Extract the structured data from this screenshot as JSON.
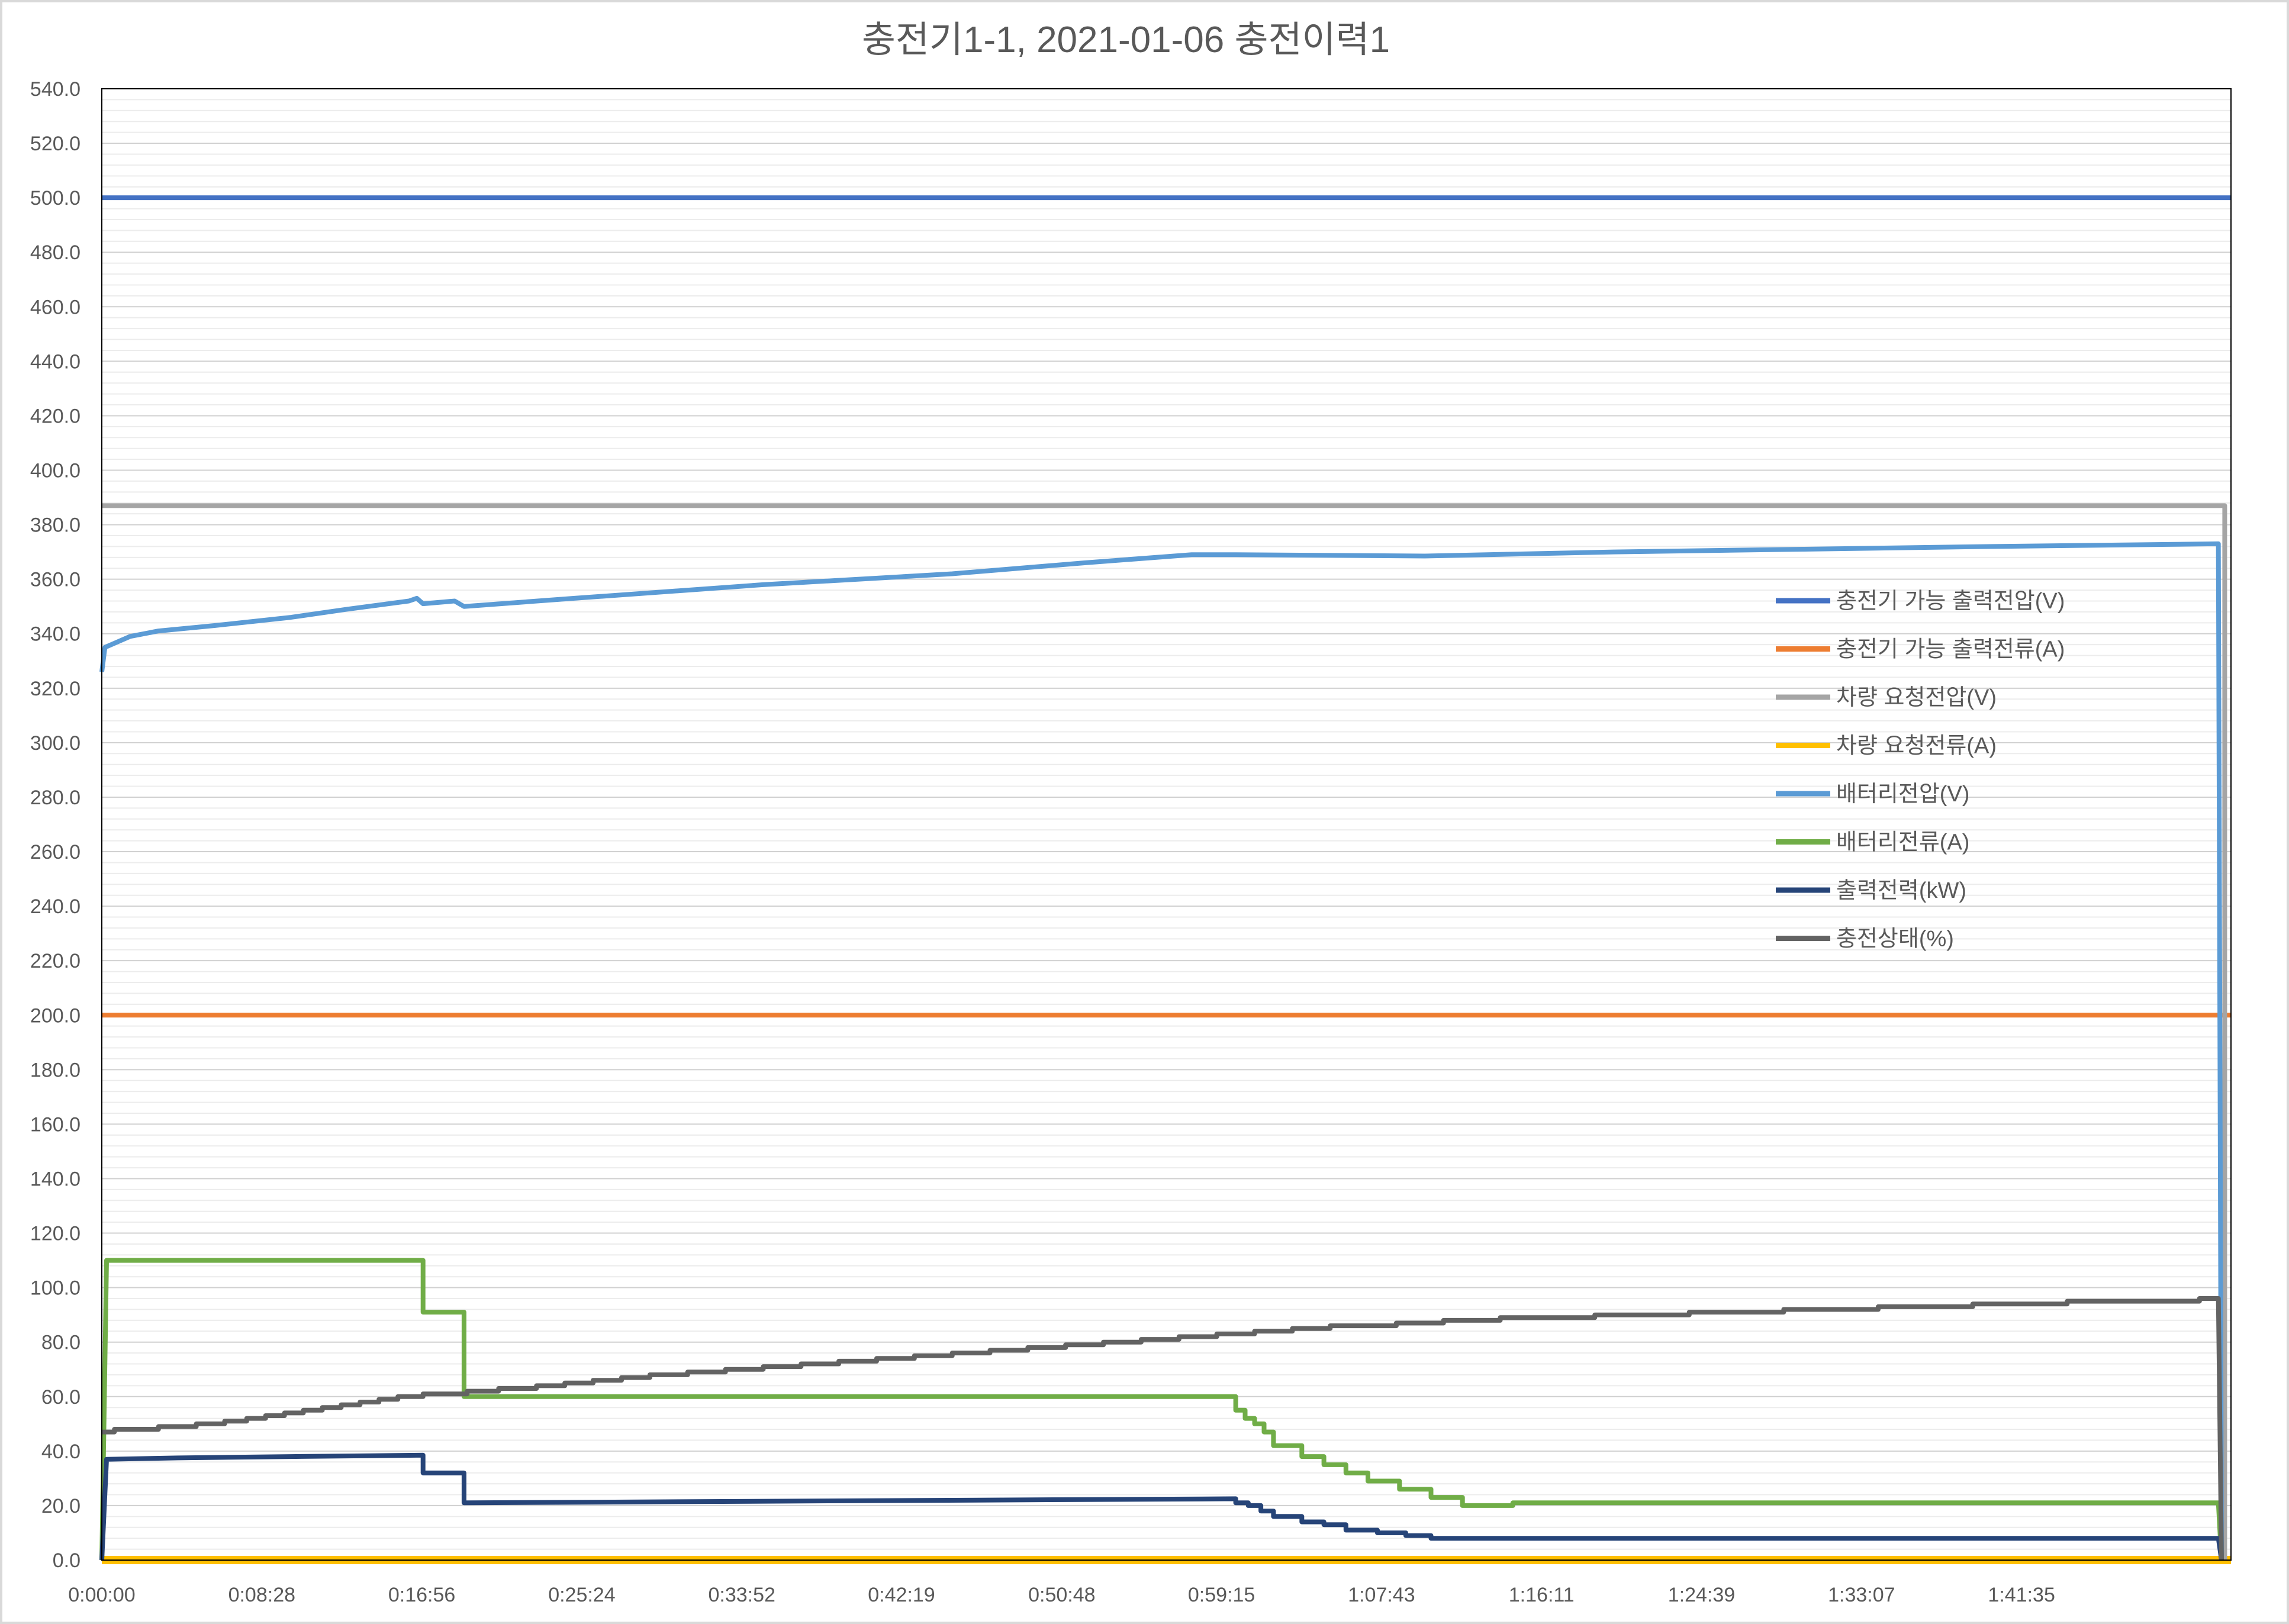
{
  "chart_data": {
    "type": "line",
    "title": "충전기1-1,  2021-01-06  충전이력1",
    "xlabel": "",
    "ylabel": "",
    "ylim": [
      0,
      540
    ],
    "xlim_seconds": [
      0,
      6760
    ],
    "y_ticks": [
      "0.0",
      "20.0",
      "40.0",
      "60.0",
      "80.0",
      "100.0",
      "120.0",
      "140.0",
      "160.0",
      "180.0",
      "200.0",
      "220.0",
      "240.0",
      "260.0",
      "280.0",
      "300.0",
      "320.0",
      "340.0",
      "360.0",
      "380.0",
      "400.0",
      "420.0",
      "440.0",
      "460.0",
      "480.0",
      "500.0",
      "520.0",
      "540.0"
    ],
    "x_ticks": [
      "0:00:00",
      "0:08:28",
      "0:16:56",
      "0:25:24",
      "0:33:52",
      "0:42:19",
      "0:50:48",
      "0:59:15",
      "1:07:43",
      "1:16:11",
      "1:24:39",
      "1:33:07",
      "1:41:35"
    ],
    "grid": true,
    "legend_position": "right",
    "series": [
      {
        "name": "충전기 가능 출력전압(V)",
        "color": "#4472C4",
        "points": [
          [
            "0:00:00",
            500
          ],
          [
            "1:52:40",
            500
          ]
        ]
      },
      {
        "name": "충전기 가능 출력전류(A)",
        "color": "#ED7D31",
        "points": [
          [
            "0:00:00",
            200
          ],
          [
            "1:52:40",
            200
          ]
        ]
      },
      {
        "name": "차량 요청전압(V)",
        "color": "#A5A5A5",
        "points": [
          [
            "0:00:00",
            387
          ],
          [
            "1:52:20",
            387
          ],
          [
            "1:52:20",
            0
          ]
        ]
      },
      {
        "name": "차량 요청전류(A)",
        "color": "#FFC000",
        "points": [
          [
            "0:00:00",
            0
          ],
          [
            "1:52:40",
            0
          ]
        ]
      },
      {
        "name": "배터리전압(V)",
        "color": "#5B9BD5",
        "points": [
          [
            "0:00:00",
            326
          ],
          [
            "0:00:10",
            335
          ],
          [
            "0:00:30",
            336
          ],
          [
            "0:01:30",
            339
          ],
          [
            "0:03:00",
            341
          ],
          [
            "0:06:00",
            343
          ],
          [
            "0:10:00",
            346
          ],
          [
            "0:13:00",
            349
          ],
          [
            "0:16:15",
            352
          ],
          [
            "0:16:40",
            353
          ],
          [
            "0:17:00",
            351
          ],
          [
            "0:18:40",
            352
          ],
          [
            "0:19:10",
            350
          ],
          [
            "0:25:00",
            353
          ],
          [
            "0:35:00",
            358
          ],
          [
            "0:45:00",
            362
          ],
          [
            "0:52:00",
            366
          ],
          [
            "0:57:40",
            369
          ],
          [
            "1:00:00",
            369
          ],
          [
            "1:10:00",
            368.5
          ],
          [
            "1:20:00",
            370
          ],
          [
            "1:30:00",
            371
          ],
          [
            "1:40:00",
            372
          ],
          [
            "1:52:00",
            373
          ],
          [
            "1:52:10",
            0
          ]
        ]
      },
      {
        "name": "배터리전류(A)",
        "color": "#70AD47",
        "points": [
          [
            "0:00:00",
            0
          ],
          [
            "0:00:15",
            110
          ],
          [
            "0:17:00",
            110
          ],
          [
            "0:17:00",
            91
          ],
          [
            "0:19:10",
            91
          ],
          [
            "0:19:10",
            60
          ],
          [
            "1:00:00",
            60
          ],
          [
            "1:00:00",
            55
          ],
          [
            "1:00:30",
            55
          ],
          [
            "1:00:30",
            52
          ],
          [
            "1:01:00",
            52
          ],
          [
            "1:01:00",
            50
          ],
          [
            "1:01:30",
            50
          ],
          [
            "1:01:30",
            47
          ],
          [
            "1:02:00",
            47
          ],
          [
            "1:02:00",
            42
          ],
          [
            "1:03:30",
            42
          ],
          [
            "1:03:30",
            38
          ],
          [
            "1:04:40",
            38
          ],
          [
            "1:04:40",
            35
          ],
          [
            "1:05:50",
            35
          ],
          [
            "1:05:50",
            32
          ],
          [
            "1:07:00",
            32
          ],
          [
            "1:07:00",
            29
          ],
          [
            "1:08:40",
            29
          ],
          [
            "1:08:40",
            26
          ],
          [
            "1:10:20",
            26
          ],
          [
            "1:10:20",
            23
          ],
          [
            "1:12:00",
            23
          ],
          [
            "1:12:00",
            20
          ],
          [
            "1:14:40",
            20
          ],
          [
            "1:14:40",
            21
          ],
          [
            "1:52:00",
            21
          ],
          [
            "1:52:10",
            0
          ]
        ]
      },
      {
        "name": "출력전력(kW)",
        "color": "#264478",
        "points": [
          [
            "0:00:00",
            0
          ],
          [
            "0:00:15",
            37
          ],
          [
            "0:04:00",
            37.5
          ],
          [
            "0:10:00",
            38
          ],
          [
            "0:17:00",
            38.5
          ],
          [
            "0:17:00",
            32
          ],
          [
            "0:19:10",
            32
          ],
          [
            "0:19:10",
            21
          ],
          [
            "1:00:00",
            22.5
          ],
          [
            "1:00:00",
            21
          ],
          [
            "1:00:40",
            21
          ],
          [
            "1:00:40",
            20
          ],
          [
            "1:01:20",
            20
          ],
          [
            "1:01:20",
            18
          ],
          [
            "1:02:00",
            18
          ],
          [
            "1:02:00",
            16
          ],
          [
            "1:03:30",
            16
          ],
          [
            "1:03:30",
            14
          ],
          [
            "1:04:40",
            14
          ],
          [
            "1:04:40",
            13
          ],
          [
            "1:05:50",
            13
          ],
          [
            "1:05:50",
            11
          ],
          [
            "1:07:30",
            11
          ],
          [
            "1:07:30",
            10
          ],
          [
            "1:09:00",
            10
          ],
          [
            "1:09:00",
            9
          ],
          [
            "1:10:20",
            9
          ],
          [
            "1:10:20",
            8
          ],
          [
            "1:52:00",
            8
          ],
          [
            "1:52:10",
            0
          ]
        ]
      },
      {
        "name": "충전상태(%)",
        "color": "#636363",
        "points": [
          [
            "0:00:00",
            47
          ],
          [
            "0:00:40",
            47
          ],
          [
            "0:00:40",
            48
          ],
          [
            "0:03:00",
            48
          ],
          [
            "0:03:00",
            49
          ],
          [
            "0:05:00",
            49
          ],
          [
            "0:05:00",
            50
          ],
          [
            "0:06:30",
            50
          ],
          [
            "0:06:30",
            51
          ],
          [
            "0:07:40",
            51
          ],
          [
            "0:07:40",
            52
          ],
          [
            "0:08:40",
            52
          ],
          [
            "0:08:40",
            53
          ],
          [
            "0:09:40",
            53
          ],
          [
            "0:09:40",
            54
          ],
          [
            "0:10:40",
            54
          ],
          [
            "0:10:40",
            55
          ],
          [
            "0:11:40",
            55
          ],
          [
            "0:11:40",
            56
          ],
          [
            "0:12:40",
            56
          ],
          [
            "0:12:40",
            57
          ],
          [
            "0:13:40",
            57
          ],
          [
            "0:13:40",
            58
          ],
          [
            "0:14:40",
            58
          ],
          [
            "0:14:40",
            59
          ],
          [
            "0:15:40",
            59
          ],
          [
            "0:15:40",
            60
          ],
          [
            "0:17:00",
            60
          ],
          [
            "0:17:00",
            61
          ],
          [
            "0:19:20",
            61
          ],
          [
            "0:19:20",
            62
          ],
          [
            "0:21:00",
            62
          ],
          [
            "0:21:00",
            63
          ],
          [
            "0:23:00",
            63
          ],
          [
            "0:23:00",
            64
          ],
          [
            "0:24:30",
            64
          ],
          [
            "0:24:30",
            65
          ],
          [
            "0:26:00",
            65
          ],
          [
            "0:26:00",
            66
          ],
          [
            "0:27:30",
            66
          ],
          [
            "0:27:30",
            67
          ],
          [
            "0:29:00",
            67
          ],
          [
            "0:29:00",
            68
          ],
          [
            "0:31:00",
            68
          ],
          [
            "0:31:00",
            69
          ],
          [
            "0:33:00",
            69
          ],
          [
            "0:33:00",
            70
          ],
          [
            "0:35:00",
            70
          ],
          [
            "0:35:00",
            71
          ],
          [
            "0:37:00",
            71
          ],
          [
            "0:37:00",
            72
          ],
          [
            "0:39:00",
            72
          ],
          [
            "0:39:00",
            73
          ],
          [
            "0:41:00",
            73
          ],
          [
            "0:41:00",
            74
          ],
          [
            "0:43:00",
            74
          ],
          [
            "0:43:00",
            75
          ],
          [
            "0:45:00",
            75
          ],
          [
            "0:45:00",
            76
          ],
          [
            "0:47:00",
            76
          ],
          [
            "0:47:00",
            77
          ],
          [
            "0:49:00",
            77
          ],
          [
            "0:49:00",
            78
          ],
          [
            "0:51:00",
            78
          ],
          [
            "0:51:00",
            79
          ],
          [
            "0:53:00",
            79
          ],
          [
            "0:53:00",
            80
          ],
          [
            "0:55:00",
            80
          ],
          [
            "0:55:00",
            81
          ],
          [
            "0:57:00",
            81
          ],
          [
            "0:57:00",
            82
          ],
          [
            "0:59:00",
            82
          ],
          [
            "0:59:00",
            83
          ],
          [
            "1:01:00",
            83
          ],
          [
            "1:01:00",
            84
          ],
          [
            "1:03:00",
            84
          ],
          [
            "1:03:00",
            85
          ],
          [
            "1:05:00",
            85
          ],
          [
            "1:05:00",
            86
          ],
          [
            "1:08:30",
            86
          ],
          [
            "1:08:30",
            87
          ],
          [
            "1:11:00",
            87
          ],
          [
            "1:11:00",
            88
          ],
          [
            "1:14:00",
            88
          ],
          [
            "1:14:00",
            89
          ],
          [
            "1:19:00",
            89
          ],
          [
            "1:19:00",
            90
          ],
          [
            "1:24:00",
            90
          ],
          [
            "1:24:00",
            91
          ],
          [
            "1:29:00",
            91
          ],
          [
            "1:29:00",
            92
          ],
          [
            "1:34:00",
            92
          ],
          [
            "1:34:00",
            93
          ],
          [
            "1:39:00",
            93
          ],
          [
            "1:39:00",
            94
          ],
          [
            "1:44:00",
            94
          ],
          [
            "1:44:00",
            95
          ],
          [
            "1:51:00",
            95
          ],
          [
            "1:51:00",
            96
          ],
          [
            "1:52:00",
            96
          ],
          [
            "1:52:10",
            0
          ]
        ]
      }
    ]
  }
}
